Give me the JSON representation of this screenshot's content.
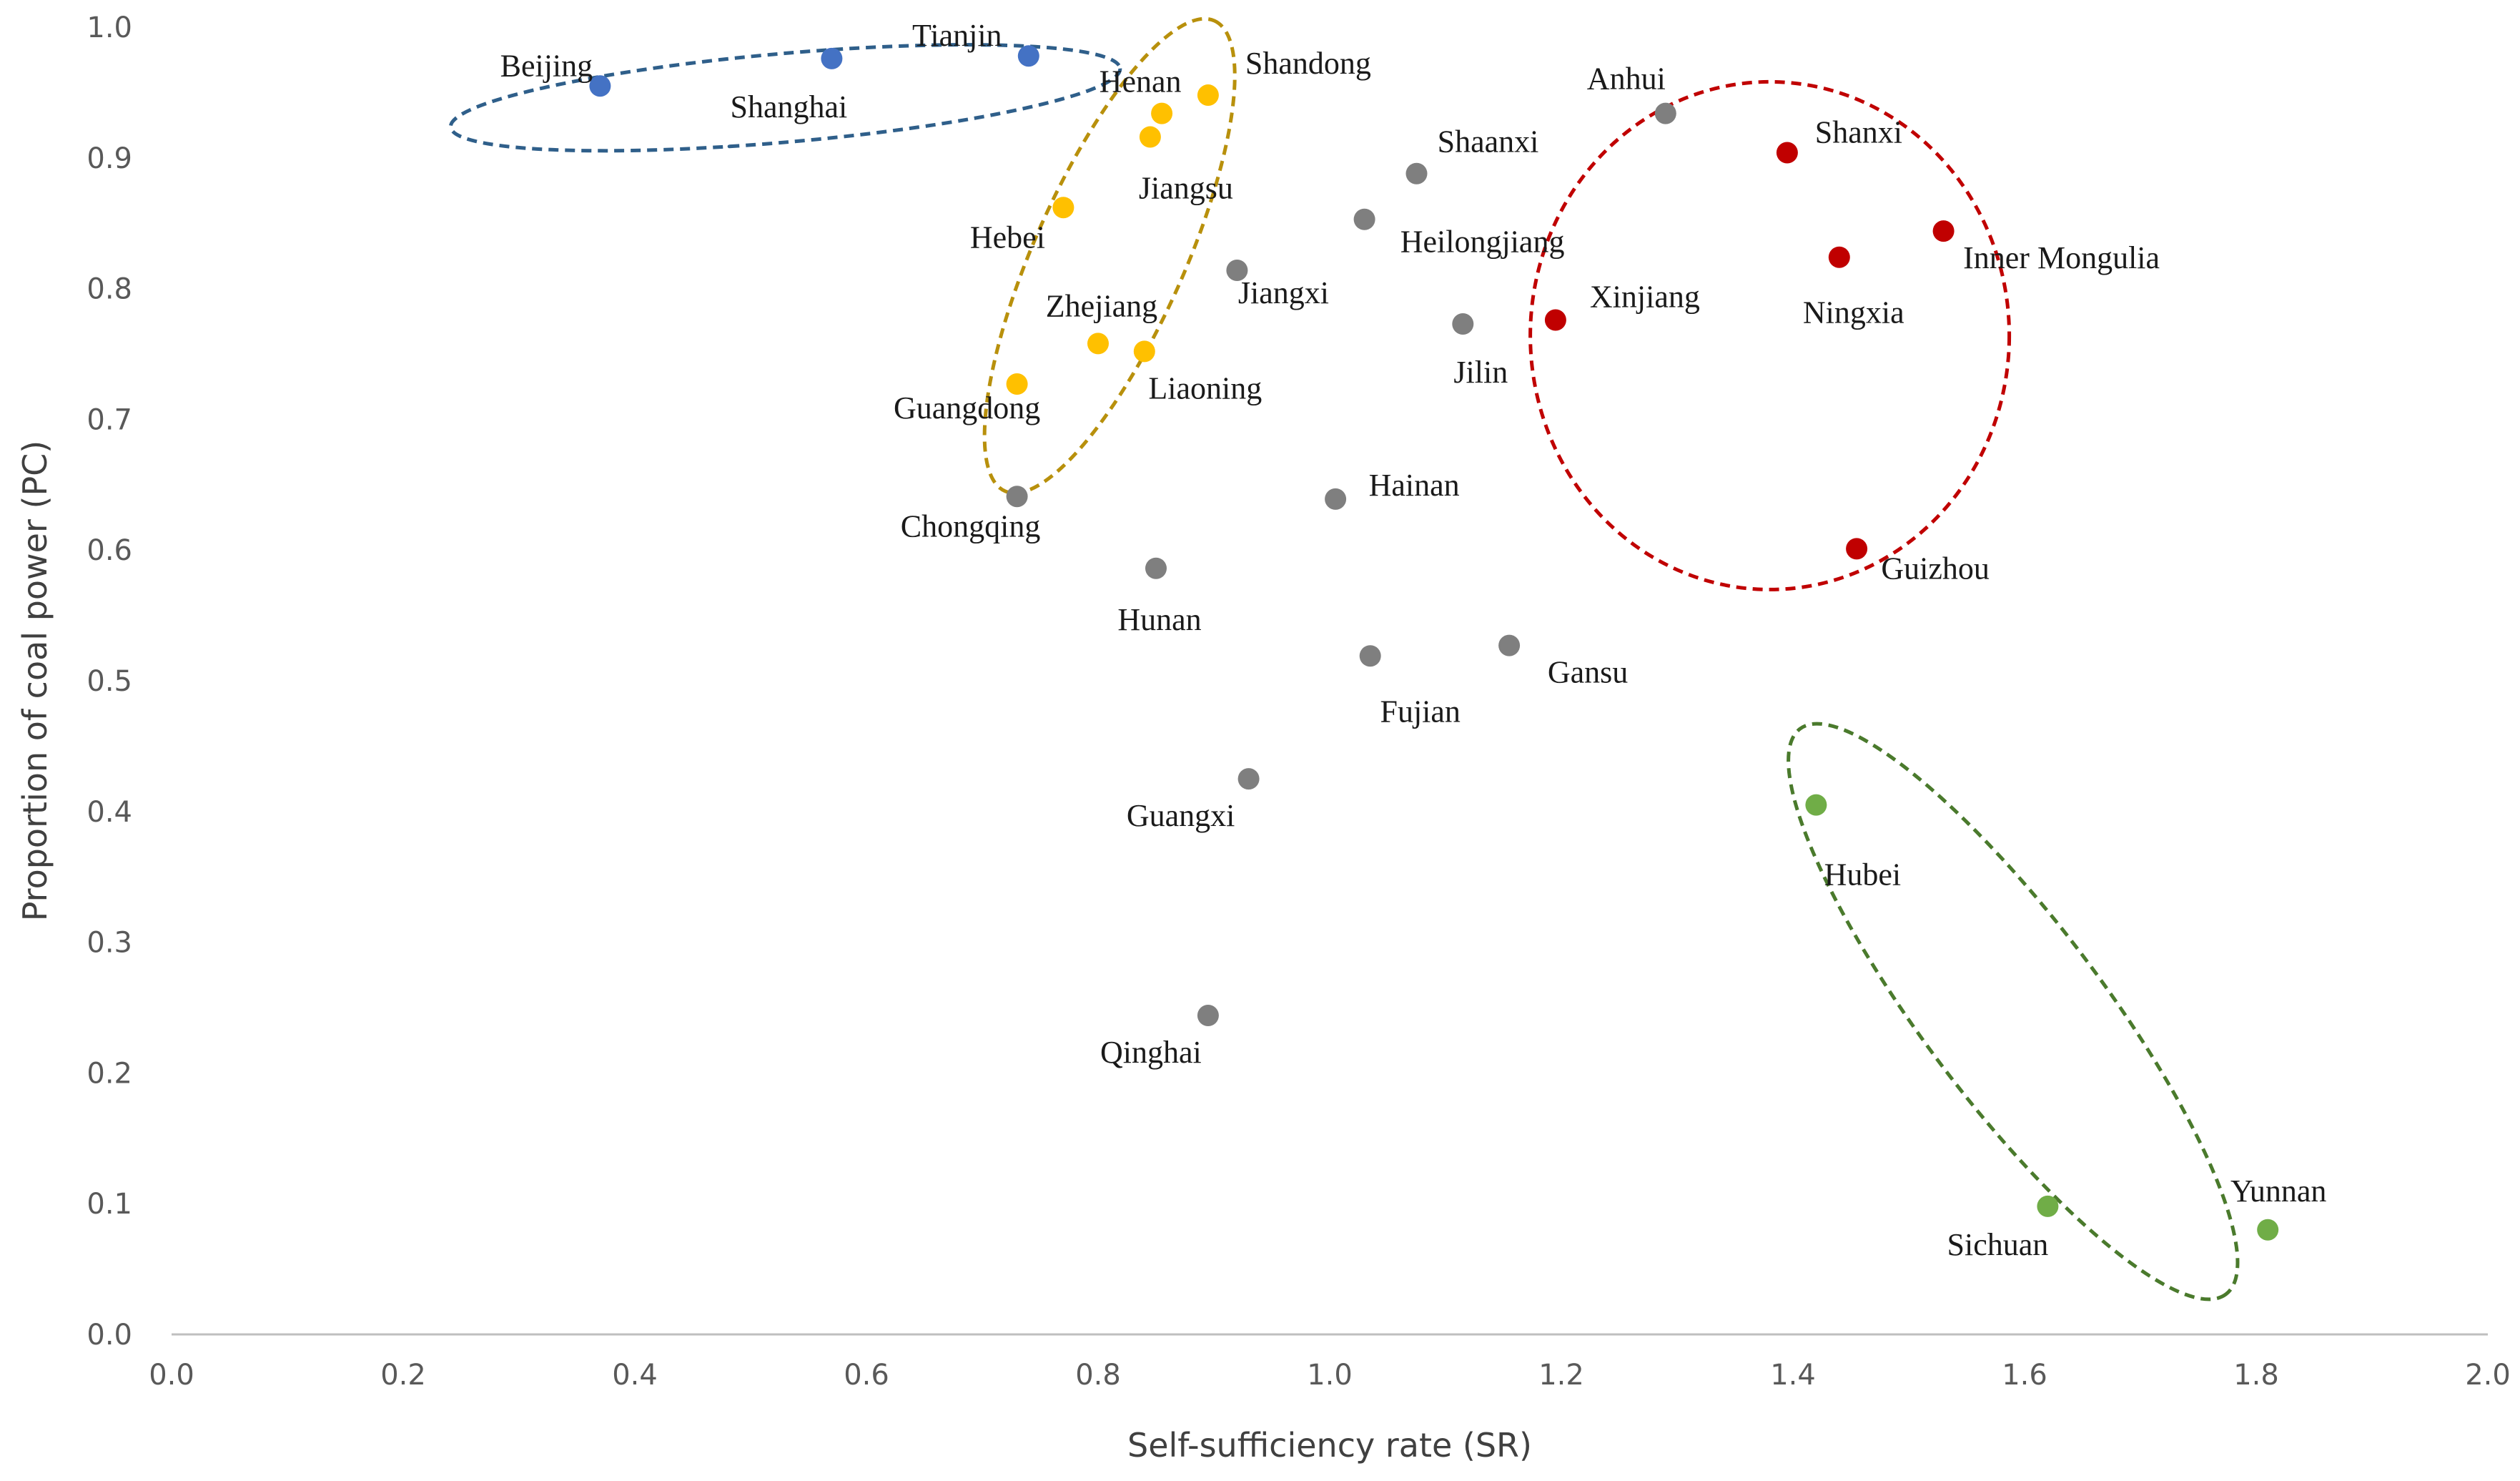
{
  "chart_data": {
    "type": "scatter",
    "title": "",
    "xlabel": "Self-sufficiency rate (SR)",
    "ylabel": "Proportion of coal power (PC)",
    "xlim": [
      0,
      2
    ],
    "ylim": [
      0,
      1
    ],
    "x_ticks": [
      "0.0",
      "0.2",
      "0.4",
      "0.6",
      "0.8",
      "1.0",
      "1.2",
      "1.4",
      "1.6",
      "1.8",
      "2.0"
    ],
    "y_ticks": [
      "0.0",
      "0.1",
      "0.2",
      "0.3",
      "0.4",
      "0.5",
      "0.6",
      "0.7",
      "0.8",
      "0.9",
      "1.0"
    ],
    "grid": false,
    "legend": "none",
    "colors": {
      "blue": "#4472c4",
      "yellow": "#ffc000",
      "gray": "#7f7f7f",
      "red": "#c00000",
      "green": "#70ad47",
      "blue_ellipse": "#2f5f8a",
      "yellow_ellipse": "#b8900c",
      "red_ellipse": "#c00000",
      "green_ellipse": "#4a7a2c"
    },
    "series": [
      {
        "name": "blue",
        "color": "#4472c4",
        "points": [
          {
            "label": "Beijing",
            "x": 0.37,
            "y": 0.955
          },
          {
            "label": "Shanghai",
            "x": 0.57,
            "y": 0.976
          },
          {
            "label": "Tianjin",
            "x": 0.74,
            "y": 0.978
          }
        ]
      },
      {
        "name": "yellow",
        "color": "#ffc000",
        "points": [
          {
            "label": "Shandong",
            "x": 0.895,
            "y": 0.948
          },
          {
            "label": "Henan",
            "x": 0.855,
            "y": 0.934
          },
          {
            "label": "Jiangsu",
            "x": 0.845,
            "y": 0.916
          },
          {
            "label": "Hebei",
            "x": 0.77,
            "y": 0.862
          },
          {
            "label": "Zhejiang",
            "x": 0.8,
            "y": 0.758
          },
          {
            "label": "Liaoning",
            "x": 0.84,
            "y": 0.752
          },
          {
            "label": "Guangdong",
            "x": 0.73,
            "y": 0.727
          }
        ]
      },
      {
        "name": "gray",
        "color": "#7f7f7f",
        "points": [
          {
            "label": "Anhui",
            "x": 1.29,
            "y": 0.934
          },
          {
            "label": "Shaanxi",
            "x": 1.075,
            "y": 0.888
          },
          {
            "label": "Heilongjiang",
            "x": 1.03,
            "y": 0.853
          },
          {
            "label": "Jiangxi",
            "x": 0.92,
            "y": 0.814
          },
          {
            "label": "Jilin",
            "x": 1.115,
            "y": 0.773
          },
          {
            "label": "Chongqing",
            "x": 0.73,
            "y": 0.641
          },
          {
            "label": "Hainan",
            "x": 1.005,
            "y": 0.639
          },
          {
            "label": "Hunan",
            "x": 0.85,
            "y": 0.586
          },
          {
            "label": "Gansu",
            "x": 1.155,
            "y": 0.527
          },
          {
            "label": "Fujian",
            "x": 1.035,
            "y": 0.519
          },
          {
            "label": "Guangxi",
            "x": 0.93,
            "y": 0.425
          },
          {
            "label": "Qinghai",
            "x": 0.895,
            "y": 0.244
          }
        ]
      },
      {
        "name": "red",
        "color": "#c00000",
        "points": [
          {
            "label": "Shanxi",
            "x": 1.395,
            "y": 0.904
          },
          {
            "label": "Inner Mongulia",
            "x": 1.53,
            "y": 0.844
          },
          {
            "label": "Ningxia",
            "x": 1.44,
            "y": 0.824
          },
          {
            "label": "Xinjiang",
            "x": 1.195,
            "y": 0.776
          },
          {
            "label": "Guizhou",
            "x": 1.455,
            "y": 0.601
          }
        ]
      },
      {
        "name": "green",
        "color": "#70ad47",
        "points": [
          {
            "label": "Hubei",
            "x": 1.42,
            "y": 0.405
          },
          {
            "label": "Sichuan",
            "x": 1.62,
            "y": 0.098
          },
          {
            "label": "Yunnan",
            "x": 1.81,
            "y": 0.08
          }
        ]
      }
    ]
  }
}
